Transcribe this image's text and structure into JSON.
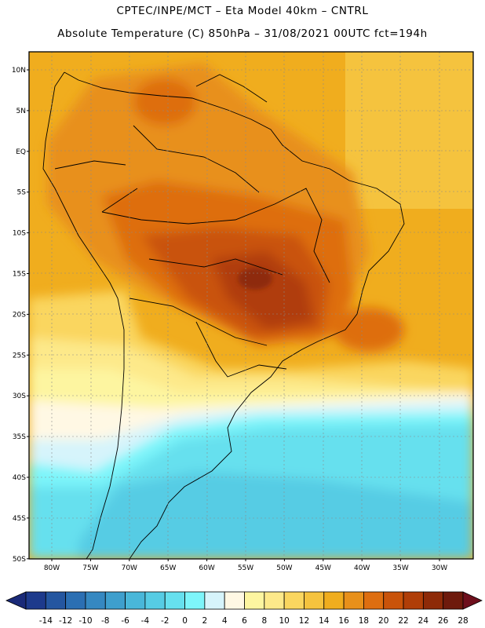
{
  "header": {
    "line1": "CPTEC/INPE/MCT –  Eta Model 40km – CNTRL",
    "line2": "Absolute Temperature (C) 850hPa – 31/08/2021 00UTC fct=194h"
  },
  "map": {
    "lat_labels": [
      "10N",
      "5N",
      "EQ",
      "5S",
      "10S",
      "15S",
      "20S",
      "25S",
      "30S",
      "35S",
      "40S",
      "45S",
      "50S"
    ],
    "lon_labels": [
      "80W",
      "75W",
      "70W",
      "65W",
      "60W",
      "55W",
      "50W",
      "45W",
      "40W",
      "35W",
      "30W"
    ]
  },
  "colorbar": {
    "labels": [
      "-14",
      "-12",
      "-10",
      "-8",
      "-6",
      "-4",
      "-2",
      "0",
      "2",
      "4",
      "6",
      "8",
      "10",
      "12",
      "14",
      "16",
      "18",
      "20",
      "22",
      "24",
      "26",
      "28"
    ],
    "colors": [
      "#1d3a8c",
      "#2456a0",
      "#2b6fb3",
      "#3588c1",
      "#3e9fcd",
      "#49b7d9",
      "#56cce4",
      "#66e0ee",
      "#7df5fa",
      "#d6f4fb",
      "#fff8e4",
      "#fdf5a0",
      "#fde98a",
      "#fad65f",
      "#f5c33e",
      "#f0ad1e",
      "#e8901a",
      "#de6e10",
      "#c9530a",
      "#b03e08",
      "#8e2a08",
      "#6e1a0c"
    ],
    "low_color": "#1a2a78",
    "high_color": "#6e0f1c"
  }
}
